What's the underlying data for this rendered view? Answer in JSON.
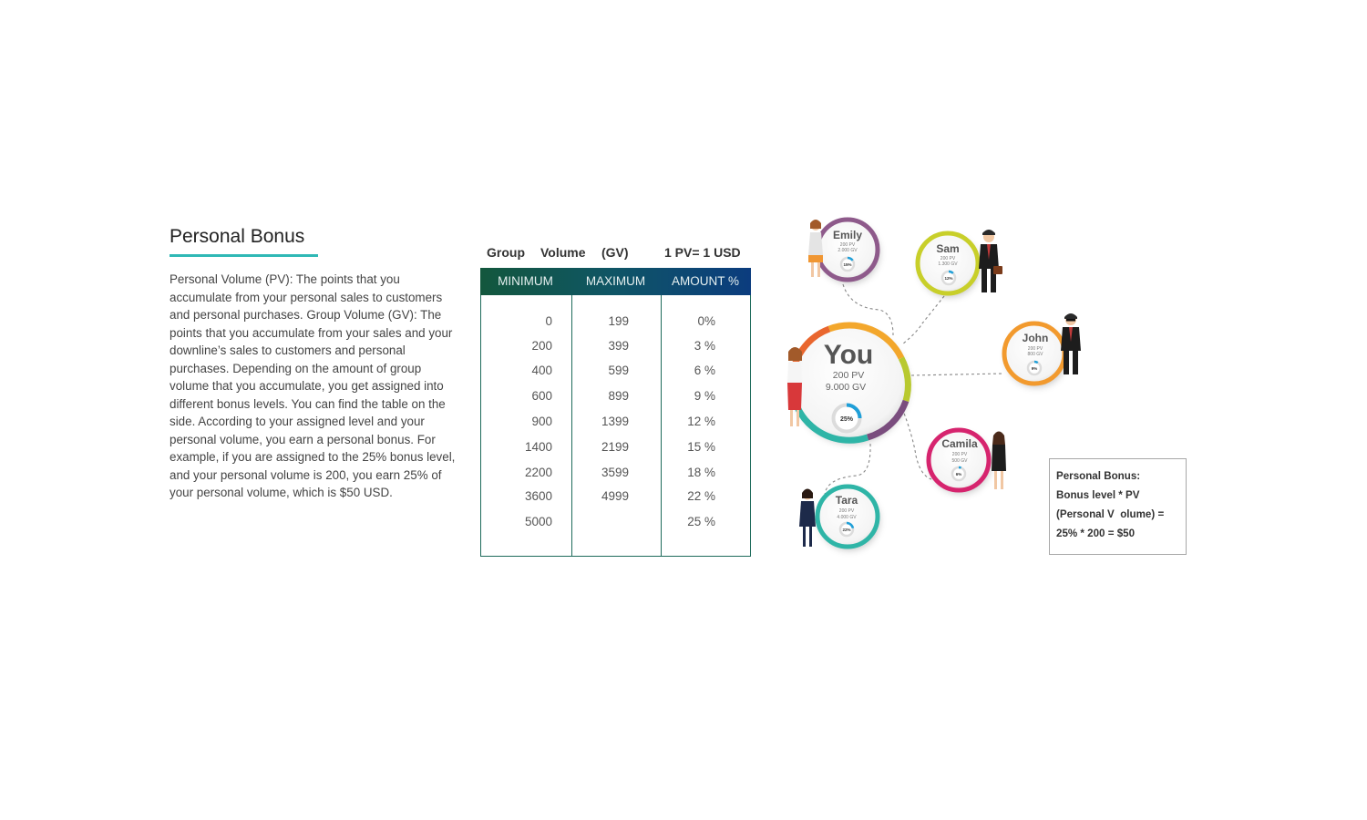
{
  "section": {
    "title": "Personal Bonus",
    "description": "Personal Volume (PV): The points that you accumulate from your personal sales to customers and personal purchases. Group Volume (GV): The points that you accumulate from your sales and your downline’s sales to customers and personal purchases. Depending on the amount of group volume that you accumulate, you get assigned into different bonus levels. You can find the table on the side. According to your assigned level and your personal volume, you earn a personal bonus. For example, if you are assigned to the 25% bonus level, and your personal volume is 200, you earn 25% of your personal volume, which is $50 USD."
  },
  "table": {
    "caption_words": [
      "Group",
      "Volume",
      "(GV)"
    ],
    "conversion": "1 PV= 1 USD",
    "headers": [
      "MINIMUM",
      "MAXIMUM",
      "AMOUNT %"
    ],
    "rows": [
      [
        "0",
        "199",
        "0%"
      ],
      [
        "200",
        "399",
        "3 %"
      ],
      [
        "400",
        "599",
        "6 %"
      ],
      [
        "600",
        "899",
        "9 %"
      ],
      [
        "900",
        "1399",
        "12 %"
      ],
      [
        "1400",
        "2199",
        "15 %"
      ],
      [
        "2200",
        "3599",
        "18 %"
      ],
      [
        "3600",
        "4999",
        "22 %"
      ],
      [
        "5000",
        "",
        "25 %"
      ]
    ]
  },
  "diagram": {
    "center": {
      "name": "You",
      "pv": "200 PV",
      "gv": "9.000 GV",
      "percent": "25%",
      "percent_value": 25
    },
    "members": [
      {
        "name": "Emily",
        "pv": "200 PV",
        "gv": "2.000 GV",
        "percent": "15%",
        "percent_value": 15,
        "ring_color": "#8e5a8b"
      },
      {
        "name": "Sam",
        "pv": "200 PV",
        "gv": "1.300 GV",
        "percent": "12%",
        "percent_value": 12,
        "ring_color": "#c8cf2a"
      },
      {
        "name": "John",
        "pv": "200 PV",
        "gv": "800 GV",
        "percent": "9%",
        "percent_value": 9,
        "ring_color": "#f29a2e"
      },
      {
        "name": "Camila",
        "pv": "200 PV",
        "gv": "500 GV",
        "percent": "6%",
        "percent_value": 6,
        "ring_color": "#d6246e"
      },
      {
        "name": "Tara",
        "pv": "200 PV",
        "gv": "4.000 GV",
        "percent": "22%",
        "percent_value": 22,
        "ring_color": "#2fb5a7"
      }
    ]
  },
  "formula": {
    "title": "Personal Bonus:",
    "line1": "Bonus level * PV",
    "line2": "(Personal V  olume) =",
    "line3": "25% * 200 = $50"
  },
  "colors": {
    "accent": "#2fb8b5",
    "table_border": "#1e6b5b",
    "header_start": "#13573d",
    "header_end": "#0b3c7e",
    "progress": "#1f9fd8"
  }
}
